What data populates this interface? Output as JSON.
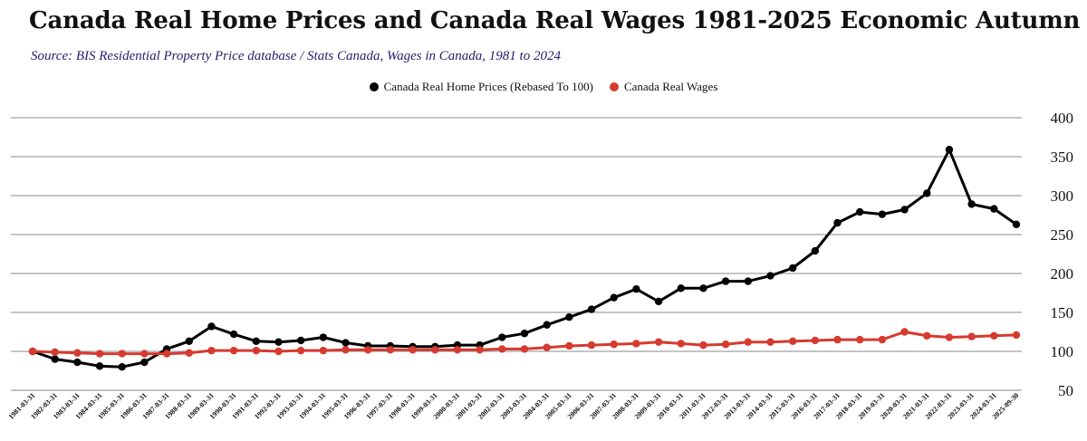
{
  "chart_data": {
    "type": "line",
    "title": "Canada Real Home Prices and Canada Real Wages 1981-2025  Economic Autumn",
    "subtitle": "Source: BIS Residential Property Price database / Stats Canada, Wages in Canada, 1981 to 2024",
    "ylim": [
      50,
      400
    ],
    "yticks": [
      50,
      100,
      150,
      200,
      250,
      300,
      350,
      400
    ],
    "grid": true,
    "legend_position": "top-center",
    "x": [
      "1981-03-31",
      "1982-03-31",
      "1983-03-31",
      "1984-03-31",
      "1985-03-31",
      "1986-03-31",
      "1987-03-31",
      "1988-03-31",
      "1989-03-31",
      "1990-03-31",
      "1991-03-31",
      "1992-03-31",
      "1993-03-31",
      "1994-03-31",
      "1995-03-31",
      "1996-03-31",
      "1997-03-31",
      "1998-03-31",
      "1999-03-31",
      "2000-03-31",
      "2001-03-31",
      "2002-03-31",
      "2003-03-31",
      "2004-03-31",
      "2005-03-31",
      "2006-03-31",
      "2007-03-31",
      "2008-03-31",
      "2009-03-31",
      "2010-03-31",
      "2011-03-31",
      "2012-03-31",
      "2013-03-31",
      "2014-03-31",
      "2015-03-31",
      "2016-03-31",
      "2017-03-31",
      "2018-03-31",
      "2019-03-31",
      "2020-03-31",
      "2021-03-31",
      "2022-03-31",
      "2023-03-31",
      "2024-03-31",
      "2025-09-30"
    ],
    "series": [
      {
        "name": "Canada Real Home Prices (Rebased To 100)",
        "color": "#000000",
        "values": [
          100,
          90,
          86,
          81,
          80,
          86,
          103,
          113,
          132,
          122,
          113,
          112,
          114,
          118,
          111,
          107,
          107,
          106,
          106,
          108,
          108,
          118,
          123,
          134,
          144,
          154,
          169,
          180,
          164,
          181,
          181,
          190,
          190,
          197,
          207,
          229,
          265,
          279,
          276,
          282,
          303,
          359,
          289,
          283,
          263
        ]
      },
      {
        "name": "Canada Real Wages",
        "color": "#d63a2f",
        "values": [
          100,
          99,
          98,
          97,
          97,
          97,
          97,
          98,
          101,
          101,
          101,
          100,
          101,
          101,
          102,
          102,
          102,
          102,
          102,
          102,
          102,
          103,
          103,
          105,
          107,
          108,
          109,
          110,
          112,
          110,
          108,
          109,
          112,
          112,
          113,
          114,
          115,
          115,
          115,
          125,
          120,
          118,
          119,
          120,
          121
        ]
      }
    ]
  }
}
